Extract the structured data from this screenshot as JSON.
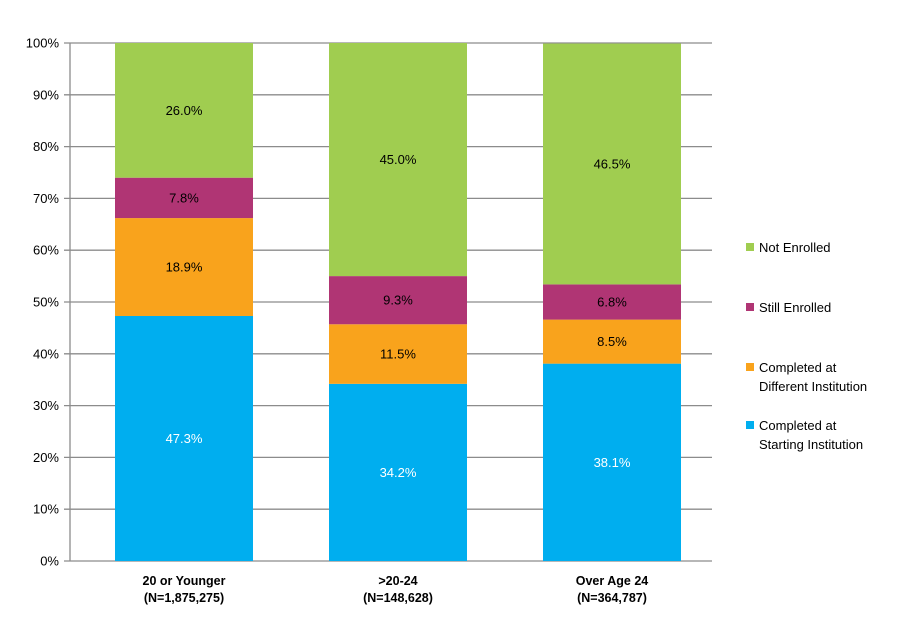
{
  "chart_data": {
    "type": "bar",
    "stacked": true,
    "categories": [
      [
        "20 or Younger",
        "(N=1,875,275)"
      ],
      [
        ">20-24",
        "(N=148,628)"
      ],
      [
        "Over Age 24",
        "(N=364,787)"
      ]
    ],
    "series": [
      {
        "name": "Completed at Starting Institution",
        "legend_lines": [
          "Completed at",
          "Starting Institution"
        ],
        "color": "#00AEEF",
        "label_color": "#FFFFFF",
        "values": [
          47.3,
          34.2,
          38.1
        ],
        "labels": [
          "47.3%",
          "34.2%",
          "38.1%"
        ]
      },
      {
        "name": "Completed at Different Institution",
        "legend_lines": [
          "Completed at",
          "Different Institution"
        ],
        "color": "#F9A31C",
        "label_color": "#000000",
        "values": [
          18.9,
          11.5,
          8.5
        ],
        "labels": [
          "18.9%",
          "11.5%",
          "8.5%"
        ]
      },
      {
        "name": "Still Enrolled",
        "legend_lines": [
          "Still Enrolled"
        ],
        "color": "#B03574",
        "label_color": "#000000",
        "values": [
          7.8,
          9.3,
          6.8
        ],
        "labels": [
          "7.8%",
          "9.3%",
          "6.8%"
        ]
      },
      {
        "name": "Not Enrolled",
        "legend_lines": [
          "Not Enrolled"
        ],
        "color": "#A0CD50",
        "label_color": "#000000",
        "values": [
          26.0,
          45.0,
          46.5
        ],
        "labels": [
          "26.0%",
          "45.0%",
          "46.5%"
        ]
      }
    ],
    "yticks": [
      "0%",
      "10%",
      "20%",
      "30%",
      "40%",
      "50%",
      "60%",
      "70%",
      "80%",
      "90%",
      "100%"
    ],
    "ylim": [
      0,
      100
    ],
    "grid": true,
    "legend_position": "right",
    "title": "",
    "xlabel": "",
    "ylabel": ""
  }
}
